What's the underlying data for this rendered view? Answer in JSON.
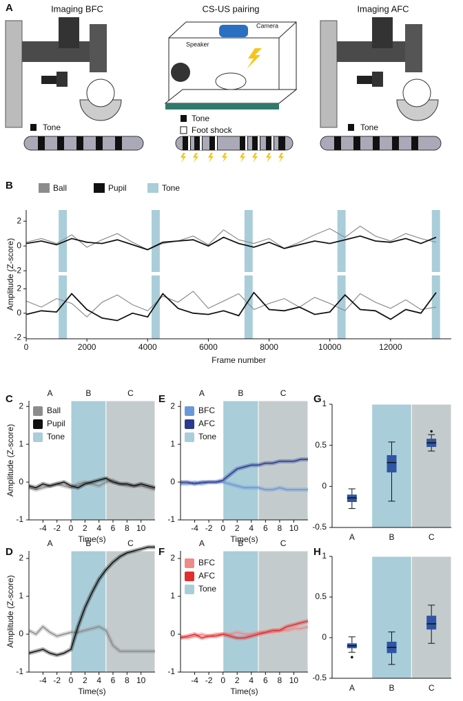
{
  "panel_labels": [
    "A",
    "B",
    "C",
    "D",
    "E",
    "F",
    "G",
    "H"
  ],
  "diagram": {
    "left": {
      "title": "Imaging BFC",
      "legend": "Tone"
    },
    "center": {
      "title": "CS-US pairing",
      "camera": "Camera",
      "speaker": "Speaker",
      "legend": [
        "Tone",
        "Foot shock"
      ]
    },
    "right": {
      "title": "Imaging AFC",
      "legend": "Tone"
    }
  },
  "chart_data": [
    {
      "type": "multi-line",
      "xlabel": "Frame number",
      "ylabel": "Amplitude (Z-score)",
      "xlim": [
        0,
        14000
      ],
      "xticks": [
        0,
        2000,
        4000,
        6000,
        8000,
        10000,
        12000
      ],
      "legend": [
        {
          "name": "Ball",
          "color": "#8c8c8c"
        },
        {
          "name": "Pupil",
          "color": "#111111"
        }
      ],
      "tone_label": "Tone",
      "tone_color": "#a9cdd9",
      "tone_spans": [
        [
          1070,
          1340
        ],
        [
          4130,
          4400
        ],
        [
          7190,
          7460
        ],
        [
          10250,
          10520
        ],
        [
          13360,
          13630
        ]
      ],
      "x": [
        0,
        500,
        1000,
        1500,
        2000,
        2500,
        3000,
        3500,
        4000,
        4500,
        5000,
        5500,
        6000,
        6500,
        7000,
        7500,
        8000,
        8500,
        9000,
        9500,
        10000,
        10500,
        11000,
        11500,
        12000,
        12500,
        13000,
        13500
      ],
      "panels": [
        {
          "ylim": [
            -2.1,
            2.9
          ],
          "yticks": [
            -2,
            0,
            2
          ],
          "series": [
            {
              "values": [
                0.3,
                0.6,
                0.2,
                0.9,
                -0.1,
                0.5,
                1.0,
                0.3,
                -0.3,
                0.2,
                0.4,
                0.8,
                0.1,
                1.3,
                0.5,
                0.2,
                0.6,
                -0.2,
                0.3,
                0.9,
                1.4,
                0.7,
                1.6,
                0.8,
                0.4,
                1.0,
                0.6,
                0.3
              ]
            },
            {
              "values": [
                0.2,
                0.4,
                0.1,
                0.6,
                0.3,
                0.2,
                0.5,
                0.1,
                -0.3,
                0.3,
                0.4,
                0.5,
                0.0,
                0.7,
                0.2,
                -0.1,
                0.3,
                -0.2,
                0.1,
                0.4,
                0.2,
                0.5,
                0.8,
                0.4,
                0.3,
                0.6,
                0.2,
                0.7
              ]
            }
          ]
        },
        {
          "ylim": [
            -2.1,
            3.1
          ],
          "yticks": [
            -2,
            0,
            2
          ],
          "series": [
            {
              "values": [
                1.0,
                0.5,
                1.2,
                0.8,
                -0.3,
                0.9,
                1.5,
                0.7,
                0.2,
                1.4,
                0.9,
                1.8,
                0.4,
                1.0,
                1.6,
                0.3,
                0.8,
                1.2,
                0.5,
                1.3,
                0.8,
                0.2,
                1.6,
                0.9,
                0.4,
                1.1,
                0.3,
                0.5
              ]
            },
            {
              "values": [
                -0.1,
                0.2,
                0.1,
                1.6,
                0.3,
                -0.4,
                -0.6,
                0.0,
                -0.3,
                1.6,
                0.4,
                0.0,
                -0.1,
                0.2,
                -0.2,
                1.7,
                0.3,
                0.2,
                0.5,
                -0.1,
                0.1,
                1.5,
                0.3,
                0.2,
                -0.5,
                0.3,
                0.0,
                1.7
              ]
            }
          ]
        }
      ]
    },
    {
      "type": "line",
      "xlabel": "Time(s)",
      "ylabel": "Amplitude (Z-score)",
      "xlim": [
        -6,
        12
      ],
      "xticks": [
        -4,
        -2,
        0,
        2,
        4,
        6,
        8,
        10
      ],
      "ylim": [
        -1,
        2.15
      ],
      "yticks": [
        -1,
        0,
        1,
        2
      ],
      "regions": [
        {
          "label": "A",
          "start": -6,
          "end": 0,
          "color": "#ffffff"
        },
        {
          "label": "B",
          "start": 0,
          "end": 5,
          "color": "#a9cdd9"
        },
        {
          "label": "C",
          "start": 5,
          "end": 12,
          "color": "#c4cbcc"
        }
      ],
      "tone_label": "Tone",
      "x": [
        -6,
        -5,
        -4,
        -3,
        -2,
        -1,
        0,
        1,
        2,
        3,
        4,
        5,
        6,
        7,
        8,
        9,
        10,
        11,
        12
      ],
      "series": [
        {
          "name": "Ball",
          "color": "#8c8c8c",
          "values": [
            -0.15,
            -0.2,
            -0.15,
            -0.1,
            -0.05,
            -0.1,
            -0.15,
            -0.05,
            0.0,
            -0.05,
            -0.1,
            0.0,
            0.05,
            -0.05,
            -0.1,
            -0.1,
            -0.1,
            -0.15,
            -0.2
          ]
        },
        {
          "name": "Pupil",
          "color": "#111111",
          "values": [
            -0.1,
            -0.15,
            -0.05,
            -0.1,
            -0.05,
            0.0,
            -0.1,
            -0.15,
            -0.05,
            0.0,
            0.05,
            0.1,
            0.0,
            -0.05,
            -0.05,
            -0.1,
            -0.05,
            -0.1,
            -0.15
          ]
        }
      ]
    },
    {
      "type": "line",
      "xlabel": "Time(s)",
      "ylabel": "Amplitude (Z-score)",
      "xlim": [
        -6,
        12
      ],
      "xticks": [
        -4,
        -2,
        0,
        2,
        4,
        6,
        8,
        10
      ],
      "ylim": [
        -1,
        2.2
      ],
      "yticks": [
        -1,
        0,
        1,
        2
      ],
      "regions": [
        {
          "label": "A",
          "start": -6,
          "end": 0,
          "color": "#ffffff"
        },
        {
          "label": "B",
          "start": 0,
          "end": 5,
          "color": "#a9cdd9"
        },
        {
          "label": "C",
          "start": 5,
          "end": 12,
          "color": "#c4cbcc"
        }
      ],
      "x": [
        -6,
        -5,
        -4,
        -3,
        -2,
        -1,
        0,
        1,
        2,
        3,
        4,
        5,
        6,
        7,
        8,
        9,
        10,
        11,
        12
      ],
      "series": [
        {
          "color": "#8c8c8c",
          "values": [
            0.1,
            0.0,
            0.2,
            0.05,
            -0.05,
            0.0,
            0.05,
            0.05,
            0.1,
            0.15,
            0.2,
            0.1,
            -0.3,
            -0.45,
            -0.45,
            -0.45,
            -0.45,
            -0.45,
            -0.45
          ]
        },
        {
          "color": "#111111",
          "values": [
            -0.5,
            -0.45,
            -0.4,
            -0.5,
            -0.55,
            -0.5,
            -0.4,
            0.2,
            0.7,
            1.1,
            1.45,
            1.7,
            1.9,
            2.05,
            2.15,
            2.2,
            2.25,
            2.3,
            2.3
          ]
        }
      ]
    },
    {
      "type": "line",
      "xlabel": "Time(s)",
      "xlim": [
        -6,
        12
      ],
      "xticks": [
        -4,
        -2,
        0,
        2,
        4,
        6,
        8,
        10
      ],
      "ylim": [
        -1,
        2.15
      ],
      "yticks": [
        -1,
        0,
        1,
        2
      ],
      "regions": [
        {
          "label": "A",
          "start": -6,
          "end": 0,
          "color": "#ffffff"
        },
        {
          "label": "B",
          "start": 0,
          "end": 5,
          "color": "#a9cdd9"
        },
        {
          "label": "C",
          "start": 5,
          "end": 12,
          "color": "#c4cbcc"
        }
      ],
      "tone_label": "Tone",
      "x": [
        -6,
        -5,
        -4,
        -3,
        -2,
        -1,
        0,
        1,
        2,
        3,
        4,
        5,
        6,
        7,
        8,
        9,
        10,
        11,
        12
      ],
      "series": [
        {
          "name": "BFC",
          "color": "#6a98d8",
          "values": [
            -0.05,
            -0.05,
            0.0,
            -0.05,
            0.0,
            0.0,
            0.0,
            -0.05,
            -0.1,
            -0.15,
            -0.15,
            -0.15,
            -0.2,
            -0.2,
            -0.15,
            -0.2,
            -0.2,
            -0.2,
            -0.2
          ]
        },
        {
          "name": "AFC",
          "color": "#2b3a8f",
          "values": [
            0.0,
            0.0,
            -0.05,
            0.0,
            0.0,
            0.0,
            0.05,
            0.2,
            0.35,
            0.4,
            0.45,
            0.45,
            0.5,
            0.5,
            0.55,
            0.55,
            0.55,
            0.6,
            0.6
          ]
        }
      ]
    },
    {
      "type": "line",
      "xlabel": "Time(s)",
      "xlim": [
        -6,
        12
      ],
      "xticks": [
        -4,
        -2,
        0,
        2,
        4,
        6,
        8,
        10
      ],
      "ylim": [
        -1,
        2.2
      ],
      "yticks": [
        -1,
        0,
        1,
        2
      ],
      "regions": [
        {
          "label": "A",
          "start": -6,
          "end": 0,
          "color": "#ffffff"
        },
        {
          "label": "B",
          "start": 0,
          "end": 5,
          "color": "#a9cdd9"
        },
        {
          "label": "C",
          "start": 5,
          "end": 12,
          "color": "#c4cbcc"
        }
      ],
      "tone_label": "Tone",
      "x": [
        -6,
        -5,
        -4,
        -3,
        -2,
        -1,
        0,
        1,
        2,
        3,
        4,
        5,
        6,
        7,
        8,
        9,
        10,
        11,
        12
      ],
      "series": [
        {
          "name": "BFC",
          "color": "#f08a8a",
          "values": [
            -0.05,
            -0.1,
            -0.05,
            0.0,
            -0.05,
            0.0,
            0.0,
            0.0,
            0.05,
            0.0,
            0.0,
            0.05,
            0.05,
            0.05,
            0.1,
            0.1,
            0.15,
            0.15,
            0.2
          ]
        },
        {
          "name": "AFC",
          "color": "#e0302e",
          "values": [
            -0.1,
            -0.05,
            0.0,
            -0.1,
            -0.05,
            -0.05,
            0.0,
            -0.05,
            -0.1,
            -0.1,
            -0.05,
            0.0,
            0.05,
            0.1,
            0.1,
            0.2,
            0.25,
            0.3,
            0.35
          ]
        }
      ]
    },
    {
      "type": "box",
      "categories": [
        "A",
        "B",
        "C"
      ],
      "band_colors": [
        "#ffffff",
        "#a9cdd9",
        "#c4cbcc"
      ],
      "color": "#2f55a4",
      "ylim": [
        -0.5,
        1
      ],
      "yticks": [
        -0.5,
        0,
        0.5,
        1
      ],
      "boxes": [
        {
          "min": -0.27,
          "q1": -0.19,
          "median": -0.14,
          "q3": -0.1,
          "max": -0.03,
          "outliers": []
        },
        {
          "min": -0.18,
          "q1": 0.17,
          "median": 0.29,
          "q3": 0.38,
          "max": 0.54,
          "outliers": []
        },
        {
          "min": 0.43,
          "q1": 0.48,
          "median": 0.53,
          "q3": 0.58,
          "max": 0.63,
          "outliers": [
            0.67
          ]
        }
      ]
    },
    {
      "type": "box",
      "categories": [
        "A",
        "B",
        "C"
      ],
      "band_colors": [
        "#ffffff",
        "#a9cdd9",
        "#c4cbcc"
      ],
      "color": "#2f55a4",
      "ylim": [
        -0.5,
        1
      ],
      "yticks": [
        -0.5,
        0,
        0.5,
        1
      ],
      "boxes": [
        {
          "min": -0.18,
          "q1": -0.13,
          "median": -0.1,
          "q3": -0.07,
          "max": 0.01,
          "outliers": [
            -0.24
          ]
        },
        {
          "min": -0.33,
          "q1": -0.19,
          "median": -0.12,
          "q3": -0.05,
          "max": 0.07,
          "outliers": []
        },
        {
          "min": -0.07,
          "q1": 0.1,
          "median": 0.17,
          "q3": 0.27,
          "max": 0.4,
          "outliers": []
        }
      ]
    }
  ]
}
